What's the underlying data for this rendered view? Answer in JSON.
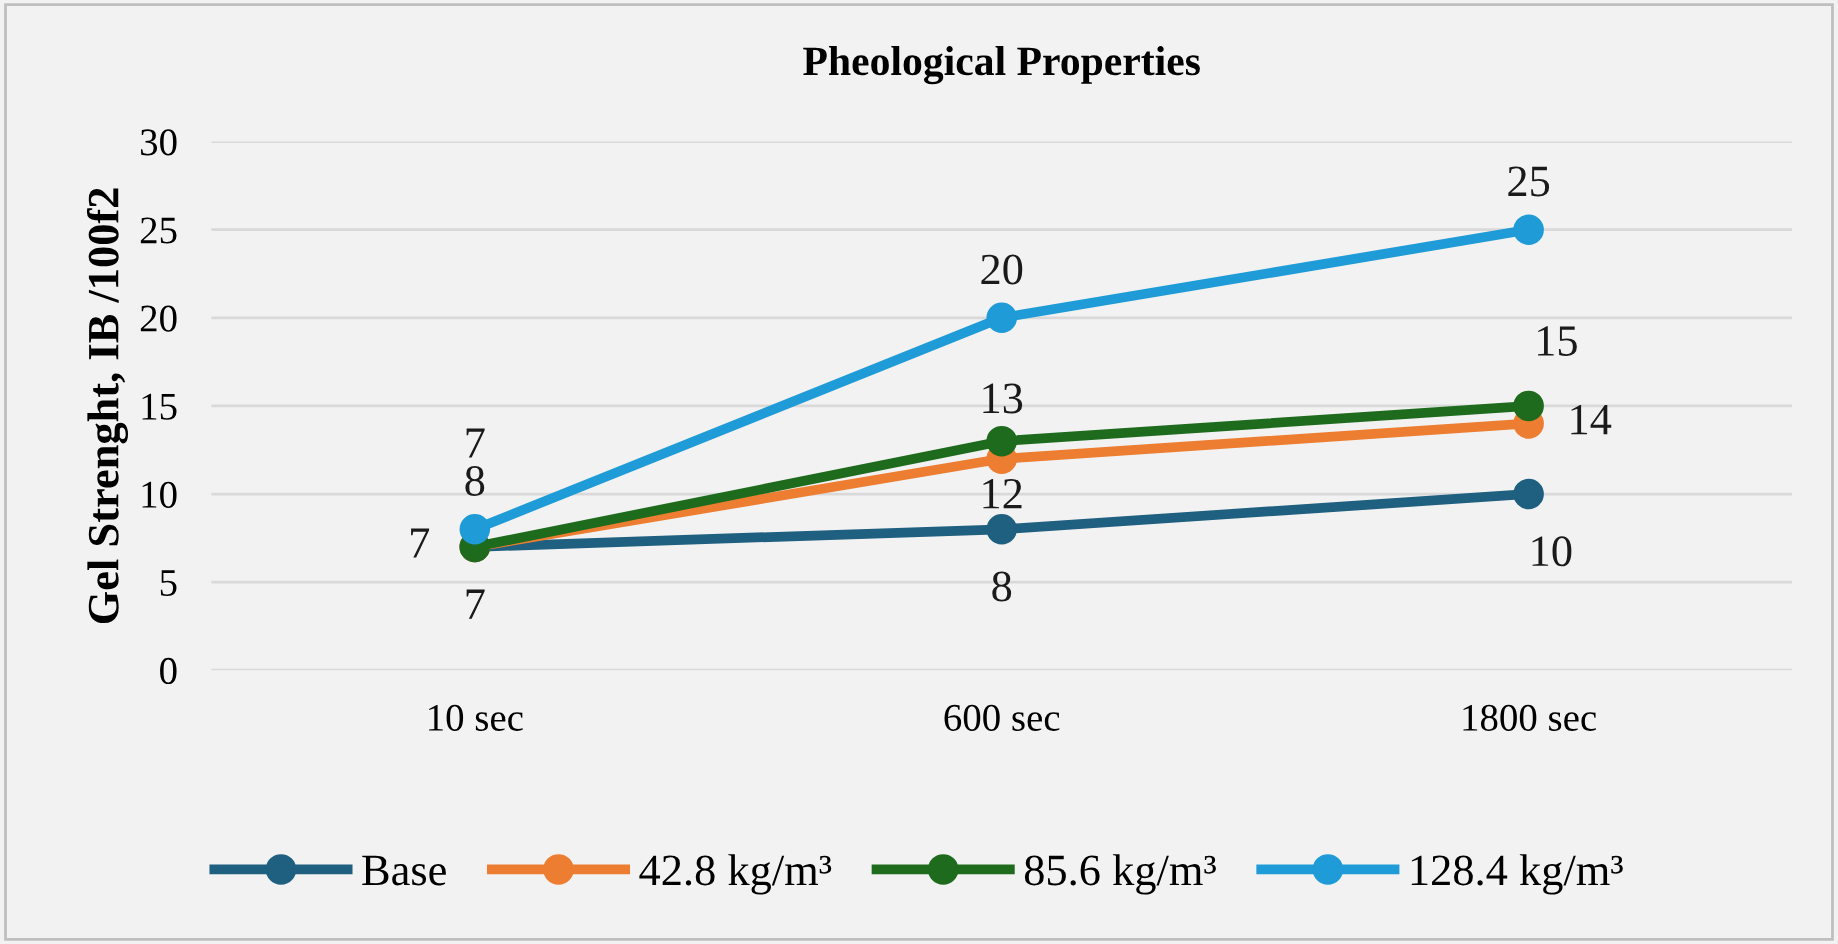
{
  "chart_data": {
    "type": "line",
    "title": "Pheological Properties",
    "ylabel": "Gel Strenght, IB /100f2",
    "categories": [
      "10 sec",
      "600 sec",
      "1800 sec"
    ],
    "series": [
      {
        "name": "Base",
        "color": "#1f5f7f",
        "values": [
          7,
          8,
          10
        ]
      },
      {
        "name": "42.8 kg/m³",
        "color": "#ed7d31",
        "values": [
          7,
          12,
          14
        ]
      },
      {
        "name": "85.6 kg/m³",
        "color": "#1e6b1e",
        "values": [
          7,
          13,
          15
        ]
      },
      {
        "name": "128.4 kg/m³",
        "color": "#1f9bd7",
        "values": [
          8,
          20,
          25
        ]
      }
    ],
    "ylim": [
      0,
      30
    ],
    "yticks": [
      0,
      5,
      10,
      15,
      20,
      25,
      30
    ],
    "grid": "y",
    "legend": "bottom",
    "marker": "circle",
    "line_style": "solid",
    "data_labels": true
  }
}
